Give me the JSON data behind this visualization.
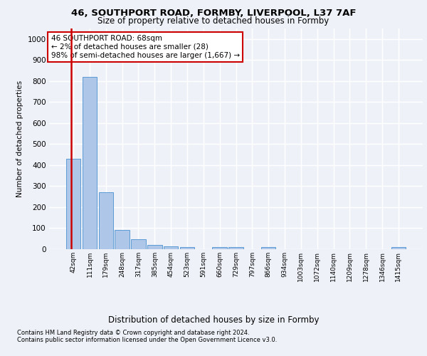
{
  "title_line1": "46, SOUTHPORT ROAD, FORMBY, LIVERPOOL, L37 7AF",
  "title_line2": "Size of property relative to detached houses in Formby",
  "xlabel": "Distribution of detached houses by size in Formby",
  "ylabel": "Number of detached properties",
  "bar_labels": [
    "42sqm",
    "111sqm",
    "179sqm",
    "248sqm",
    "317sqm",
    "385sqm",
    "454sqm",
    "523sqm",
    "591sqm",
    "660sqm",
    "729sqm",
    "797sqm",
    "866sqm",
    "934sqm",
    "1003sqm",
    "1072sqm",
    "1140sqm",
    "1209sqm",
    "1278sqm",
    "1346sqm",
    "1415sqm"
  ],
  "bar_values": [
    430,
    818,
    270,
    92,
    48,
    22,
    14,
    10,
    0,
    10,
    10,
    0,
    10,
    0,
    0,
    0,
    0,
    0,
    0,
    0,
    10
  ],
  "bar_color": "#aec6e8",
  "bar_edge_color": "#5b9bd5",
  "annotation_text": "46 SOUTHPORT ROAD: 68sqm\n← 2% of detached houses are smaller (28)\n98% of semi-detached houses are larger (1,667) →",
  "annotation_box_color": "#ffffff",
  "annotation_box_edge_color": "#cc0000",
  "ylim": [
    0,
    1050
  ],
  "yticks": [
    0,
    100,
    200,
    300,
    400,
    500,
    600,
    700,
    800,
    900,
    1000
  ],
  "footer_line1": "Contains HM Land Registry data © Crown copyright and database right 2024.",
  "footer_line2": "Contains public sector information licensed under the Open Government Licence v3.0.",
  "bg_color": "#eef2f8",
  "grid_color": "#ffffff",
  "red_line_color": "#cc0000",
  "red_line_x": -0.15
}
